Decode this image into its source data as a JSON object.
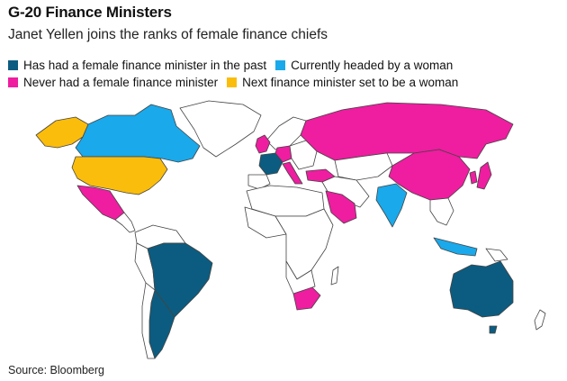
{
  "header": {
    "title": "G-20 Finance Ministers",
    "subtitle": "Janet Yellen joins the ranks of female finance chiefs"
  },
  "legend": [
    {
      "key": "past",
      "label": "Has had a female finance minister in the past",
      "color": "#0b5c80"
    },
    {
      "key": "current",
      "label": "Currently headed by a woman",
      "color": "#1aa9ea"
    },
    {
      "key": "never",
      "label": "Never had a female finance minister",
      "color": "#ef1da0"
    },
    {
      "key": "next",
      "label": "Next finance minister set to be a woman",
      "color": "#fbbd0b"
    }
  ],
  "colors": {
    "other": "#ffffff",
    "border": "#444444"
  },
  "source": "Source: Bloomberg"
}
